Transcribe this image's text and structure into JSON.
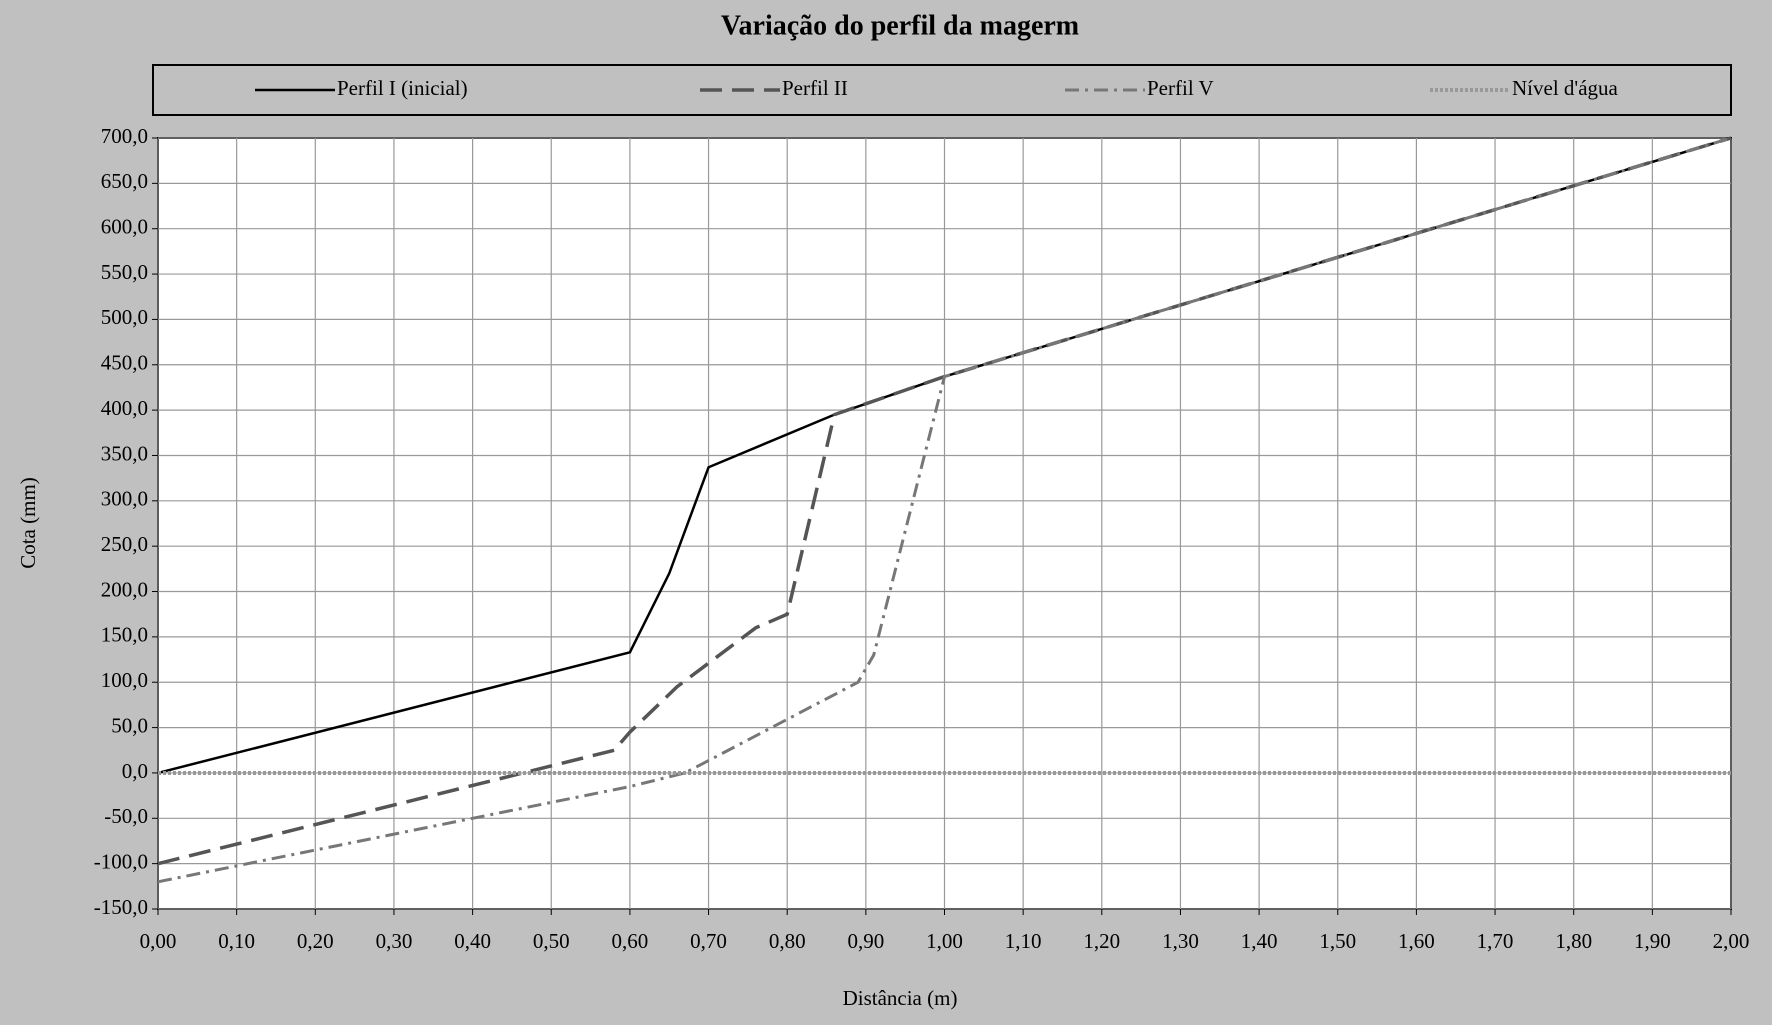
{
  "chart_data": {
    "type": "line",
    "title": "Variação do perfil da magerm",
    "xlabel": "Distância (m)",
    "ylabel": "Cota (mm)",
    "grid": true,
    "legend": "top",
    "xlim": [
      0,
      2
    ],
    "ylim": [
      -150,
      700
    ],
    "xticks": [
      {
        "value": 0,
        "label": "0,00"
      },
      {
        "value": 0.1,
        "label": "0,10"
      },
      {
        "value": 0.2,
        "label": "0,20"
      },
      {
        "value": 0.3,
        "label": "0,30"
      },
      {
        "value": 0.4,
        "label": "0,40"
      },
      {
        "value": 0.5,
        "label": "0,50"
      },
      {
        "value": 0.6,
        "label": "0,60"
      },
      {
        "value": 0.7,
        "label": "0,70"
      },
      {
        "value": 0.8,
        "label": "0,80"
      },
      {
        "value": 0.9,
        "label": "0,90"
      },
      {
        "value": 1,
        "label": "1,00"
      },
      {
        "value": 1.1,
        "label": "1,10"
      },
      {
        "value": 1.2,
        "label": "1,20"
      },
      {
        "value": 1.3,
        "label": "1,30"
      },
      {
        "value": 1.4,
        "label": "1,40"
      },
      {
        "value": 1.5,
        "label": "1,50"
      },
      {
        "value": 1.6,
        "label": "1,60"
      },
      {
        "value": 1.7,
        "label": "1,70"
      },
      {
        "value": 1.8,
        "label": "1,80"
      },
      {
        "value": 1.9,
        "label": "1,90"
      },
      {
        "value": 2,
        "label": "2,00"
      }
    ],
    "yticks": [
      {
        "value": 700,
        "label": "700,0"
      },
      {
        "value": 650,
        "label": "650,0"
      },
      {
        "value": 600,
        "label": "600,0"
      },
      {
        "value": 550,
        "label": "550,0"
      },
      {
        "value": 500,
        "label": "500,0"
      },
      {
        "value": 450,
        "label": "450,0"
      },
      {
        "value": 400,
        "label": "400,0"
      },
      {
        "value": 350,
        "label": "350,0"
      },
      {
        "value": 300,
        "label": "300,0"
      },
      {
        "value": 250,
        "label": "250,0"
      },
      {
        "value": 200,
        "label": "200,0"
      },
      {
        "value": 150,
        "label": "150,0"
      },
      {
        "value": 100,
        "label": "100,0"
      },
      {
        "value": 50,
        "label": "50,0"
      },
      {
        "value": 0,
        "label": "0,0"
      },
      {
        "value": -50,
        "label": "-50,0"
      },
      {
        "value": -100,
        "label": "-100,0"
      },
      {
        "value": -150,
        "label": "-150,0"
      }
    ],
    "series": [
      {
        "name": "Perfil I (inicial)",
        "color": "#000000",
        "line_style": "solid",
        "x": [
          0,
          0.6,
          0.65,
          0.7,
          0.86,
          1.0,
          2.0
        ],
        "values": [
          0,
          133,
          220,
          337,
          395,
          437,
          700
        ]
      },
      {
        "name": "Perfil II",
        "color": "#555555",
        "line_style": "dashed",
        "x": [
          0,
          0.58,
          0.6,
          0.66,
          0.76,
          0.8,
          0.86,
          1.0,
          2.0
        ],
        "values": [
          -100,
          25,
          45,
          95,
          160,
          175,
          395,
          437,
          700
        ]
      },
      {
        "name": "Perfil V",
        "color": "#777777",
        "line_style": "dashdot",
        "x": [
          0,
          0.6,
          0.67,
          0.89,
          0.91,
          1.0,
          2.0
        ],
        "values": [
          -120,
          -15,
          0,
          100,
          130,
          437,
          700
        ]
      },
      {
        "name": "Nível d'água",
        "color": "#999999",
        "line_style": "dotted",
        "x": [
          0,
          2.0
        ],
        "values": [
          0,
          0
        ]
      }
    ]
  }
}
